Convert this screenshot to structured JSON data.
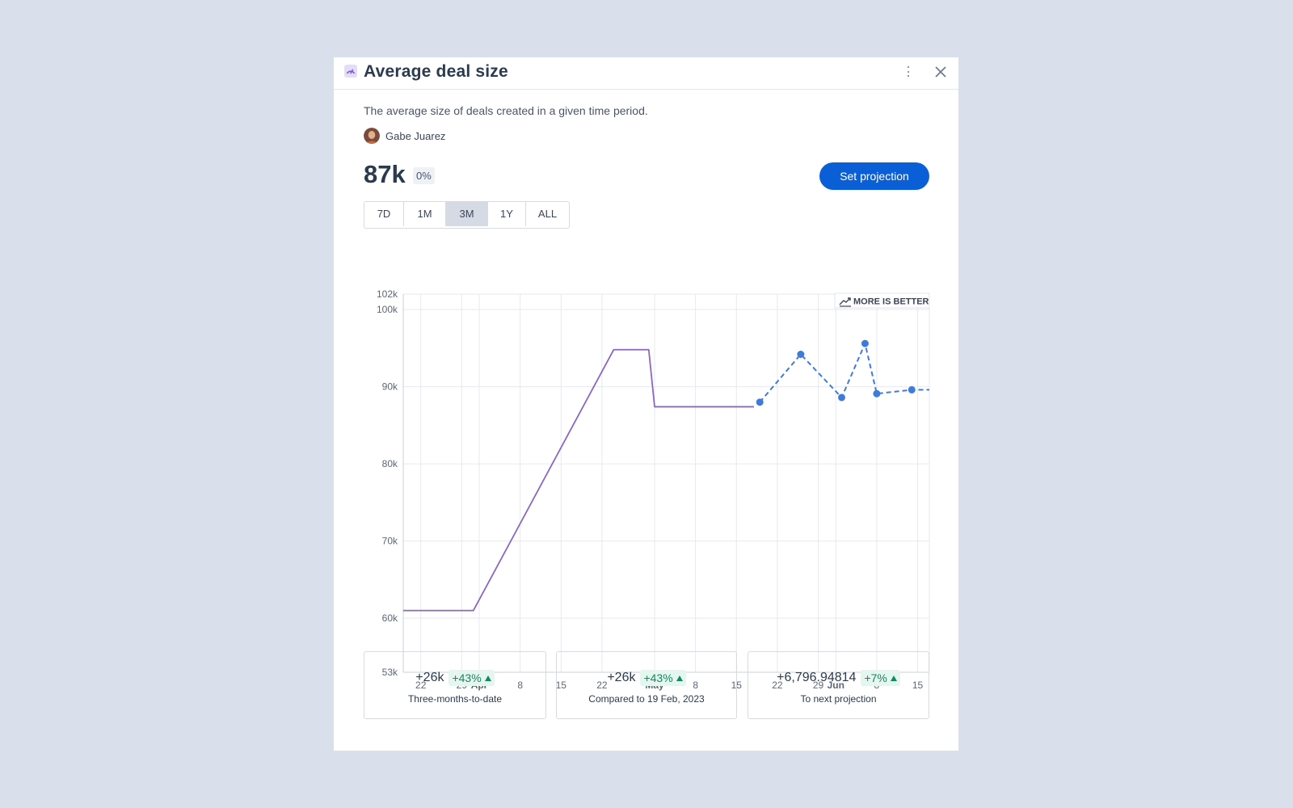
{
  "header": {
    "title": "Average deal size",
    "icon": "gauge-icon"
  },
  "description": "The average size of deals created in a given time period.",
  "author": {
    "name": "Gabe Juarez"
  },
  "metric": {
    "value": "87k",
    "change": "0%"
  },
  "actions": {
    "set_projection": "Set projection"
  },
  "ranges": [
    {
      "label": "7D",
      "active": false
    },
    {
      "label": "1M",
      "active": false
    },
    {
      "label": "3M",
      "active": true
    },
    {
      "label": "1Y",
      "active": false
    },
    {
      "label": "ALL",
      "active": false
    }
  ],
  "chart_badge": "MORE IS BETTER",
  "colors": {
    "actual": "#8a67c2",
    "projection": "#3f7bdb",
    "accent": "#0b5fd6",
    "positive": "#138a5e"
  },
  "chart_data": {
    "type": "line",
    "x_unit": "date",
    "ylim": [
      53000,
      102000
    ],
    "xlim": [
      "2023-03-19",
      "2023-06-17"
    ],
    "yticks": [
      {
        "value": 53000,
        "label": "53k"
      },
      {
        "value": 60000,
        "label": "60k"
      },
      {
        "value": 70000,
        "label": "70k"
      },
      {
        "value": 80000,
        "label": "80k"
      },
      {
        "value": 90000,
        "label": "90k"
      },
      {
        "value": 100000,
        "label": "100k"
      },
      {
        "value": 102000,
        "label": "102k"
      }
    ],
    "xticks": [
      {
        "date": "2023-03-22",
        "label": "22",
        "bold": false
      },
      {
        "date": "2023-03-29",
        "label": "29",
        "bold": false
      },
      {
        "date": "2023-04-01",
        "label": "Apr",
        "bold": true
      },
      {
        "date": "2023-04-08",
        "label": "8",
        "bold": false
      },
      {
        "date": "2023-04-15",
        "label": "15",
        "bold": false
      },
      {
        "date": "2023-04-22",
        "label": "22",
        "bold": false
      },
      {
        "date": "2023-05-01",
        "label": "May",
        "bold": true
      },
      {
        "date": "2023-05-08",
        "label": "8",
        "bold": false
      },
      {
        "date": "2023-05-15",
        "label": "15",
        "bold": false
      },
      {
        "date": "2023-05-22",
        "label": "22",
        "bold": false
      },
      {
        "date": "2023-05-29",
        "label": "29",
        "bold": false
      },
      {
        "date": "2023-06-01",
        "label": "Jun",
        "bold": true
      },
      {
        "date": "2023-06-08",
        "label": "8",
        "bold": false
      },
      {
        "date": "2023-06-15",
        "label": "15",
        "bold": false
      }
    ],
    "series": [
      {
        "style": "solid",
        "points": [
          {
            "x": "2023-03-19",
            "y": 61000
          },
          {
            "x": "2023-03-31",
            "y": 61000
          },
          {
            "x": "2023-04-24",
            "y": 94800
          },
          {
            "x": "2023-04-30",
            "y": 94800
          },
          {
            "x": "2023-05-01",
            "y": 87400
          },
          {
            "x": "2023-05-18",
            "y": 87400
          }
        ]
      },
      {
        "style": "dashed",
        "markers": true,
        "points": [
          {
            "x": "2023-05-19",
            "y": 88000
          },
          {
            "x": "2023-05-26",
            "y": 94200
          },
          {
            "x": "2023-06-02",
            "y": 88600
          },
          {
            "x": "2023-06-06",
            "y": 95600
          },
          {
            "x": "2023-06-08",
            "y": 89100
          },
          {
            "x": "2023-06-14",
            "y": 89600
          },
          {
            "x": "2023-06-17",
            "y": 89600,
            "marker": false
          }
        ]
      }
    ],
    "grid": true
  },
  "stats": [
    {
      "value": "+26k",
      "pct": "+43%",
      "label": "Three-months-to-date"
    },
    {
      "value": "+26k",
      "pct": "+43%",
      "label": "Compared to 19 Feb, 2023"
    },
    {
      "value": "+6,796.94814",
      "pct": "+7%",
      "label": "To next projection"
    }
  ]
}
